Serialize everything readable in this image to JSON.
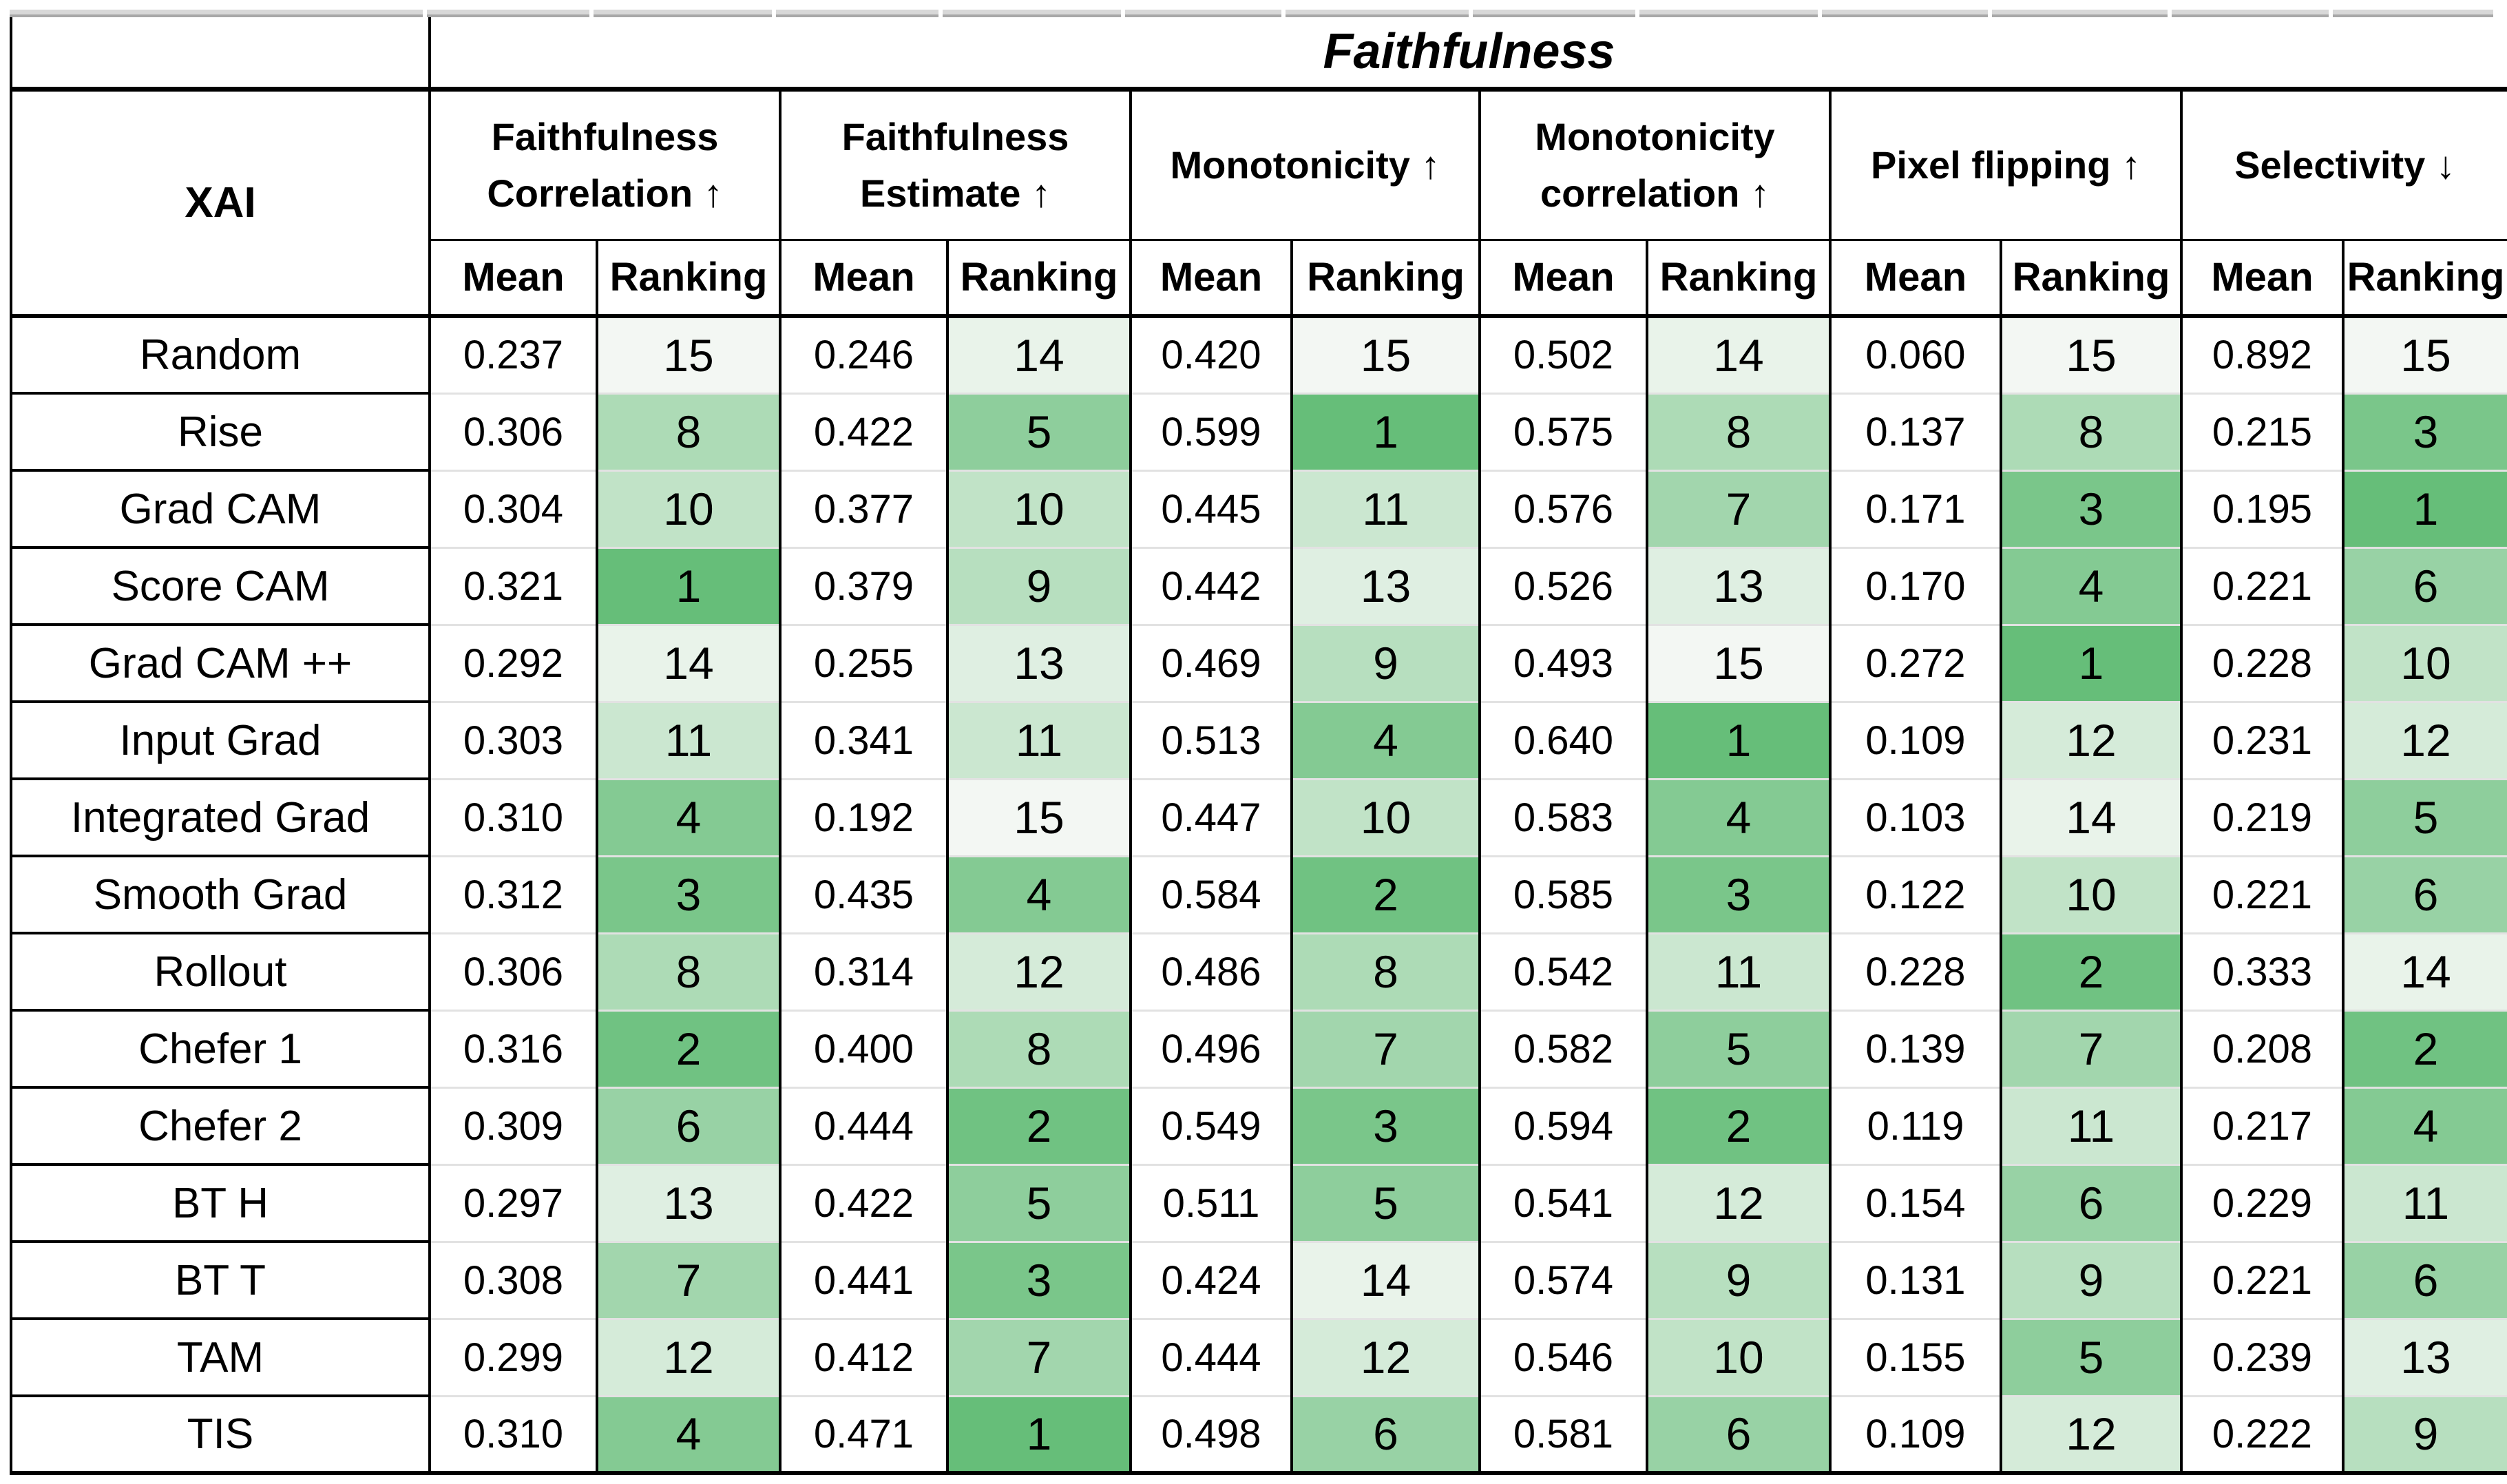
{
  "table": {
    "title": "Faithfulness",
    "xai_header": "XAI",
    "sub_headers": {
      "mean": "Mean",
      "ranking": "Ranking"
    },
    "metrics": [
      {
        "label": "Faithfulness Correlation",
        "arrow": "↑"
      },
      {
        "label": "Faithfulness Estimate",
        "arrow": "↑"
      },
      {
        "label": "Monotonicity",
        "arrow": "↑"
      },
      {
        "label": "Monotonicity correlation",
        "arrow": "↑"
      },
      {
        "label": "Pixel flipping",
        "arrow": "↑"
      },
      {
        "label": "Selectivity",
        "arrow": "↓"
      }
    ],
    "colors": {
      "rank_best": "#66BE79",
      "rank_worst": "#F3F7F3",
      "grid_black": "#000000",
      "row_separator": "#e2e2e2"
    },
    "rows": [
      {
        "method": "Random",
        "cells": [
          {
            "mean": "0.237",
            "rank": 15
          },
          {
            "mean": "0.246",
            "rank": 14
          },
          {
            "mean": "0.420",
            "rank": 15
          },
          {
            "mean": "0.502",
            "rank": 14
          },
          {
            "mean": "0.060",
            "rank": 15
          },
          {
            "mean": "0.892",
            "rank": 15
          }
        ]
      },
      {
        "method": "Rise",
        "cells": [
          {
            "mean": "0.306",
            "rank": 8
          },
          {
            "mean": "0.422",
            "rank": 5
          },
          {
            "mean": "0.599",
            "rank": 1
          },
          {
            "mean": "0.575",
            "rank": 8
          },
          {
            "mean": "0.137",
            "rank": 8
          },
          {
            "mean": "0.215",
            "rank": 3
          }
        ]
      },
      {
        "method": "Grad CAM",
        "cells": [
          {
            "mean": "0.304",
            "rank": 10
          },
          {
            "mean": "0.377",
            "rank": 10
          },
          {
            "mean": "0.445",
            "rank": 11
          },
          {
            "mean": "0.576",
            "rank": 7
          },
          {
            "mean": "0.171",
            "rank": 3
          },
          {
            "mean": "0.195",
            "rank": 1
          }
        ]
      },
      {
        "method": "Score CAM",
        "cells": [
          {
            "mean": "0.321",
            "rank": 1
          },
          {
            "mean": "0.379",
            "rank": 9
          },
          {
            "mean": "0.442",
            "rank": 13
          },
          {
            "mean": "0.526",
            "rank": 13
          },
          {
            "mean": "0.170",
            "rank": 4
          },
          {
            "mean": "0.221",
            "rank": 6
          }
        ]
      },
      {
        "method": "Grad CAM ++",
        "cells": [
          {
            "mean": "0.292",
            "rank": 14
          },
          {
            "mean": "0.255",
            "rank": 13
          },
          {
            "mean": "0.469",
            "rank": 9
          },
          {
            "mean": "0.493",
            "rank": 15
          },
          {
            "mean": "0.272",
            "rank": 1
          },
          {
            "mean": "0.228",
            "rank": 10
          }
        ]
      },
      {
        "method": "Input Grad",
        "cells": [
          {
            "mean": "0.303",
            "rank": 11
          },
          {
            "mean": "0.341",
            "rank": 11
          },
          {
            "mean": "0.513",
            "rank": 4
          },
          {
            "mean": "0.640",
            "rank": 1
          },
          {
            "mean": "0.109",
            "rank": 12
          },
          {
            "mean": "0.231",
            "rank": 12
          }
        ]
      },
      {
        "method": "Integrated Grad",
        "cells": [
          {
            "mean": "0.310",
            "rank": 4
          },
          {
            "mean": "0.192",
            "rank": 15
          },
          {
            "mean": "0.447",
            "rank": 10
          },
          {
            "mean": "0.583",
            "rank": 4
          },
          {
            "mean": "0.103",
            "rank": 14
          },
          {
            "mean": "0.219",
            "rank": 5
          }
        ]
      },
      {
        "method": "Smooth Grad",
        "cells": [
          {
            "mean": "0.312",
            "rank": 3
          },
          {
            "mean": "0.435",
            "rank": 4
          },
          {
            "mean": "0.584",
            "rank": 2
          },
          {
            "mean": "0.585",
            "rank": 3
          },
          {
            "mean": "0.122",
            "rank": 10
          },
          {
            "mean": "0.221",
            "rank": 6
          }
        ]
      },
      {
        "method": "Rollout",
        "cells": [
          {
            "mean": "0.306",
            "rank": 8
          },
          {
            "mean": "0.314",
            "rank": 12
          },
          {
            "mean": "0.486",
            "rank": 8
          },
          {
            "mean": "0.542",
            "rank": 11
          },
          {
            "mean": "0.228",
            "rank": 2
          },
          {
            "mean": "0.333",
            "rank": 14
          }
        ]
      },
      {
        "method": "Chefer 1",
        "cells": [
          {
            "mean": "0.316",
            "rank": 2
          },
          {
            "mean": "0.400",
            "rank": 8
          },
          {
            "mean": "0.496",
            "rank": 7
          },
          {
            "mean": "0.582",
            "rank": 5
          },
          {
            "mean": "0.139",
            "rank": 7
          },
          {
            "mean": "0.208",
            "rank": 2
          }
        ]
      },
      {
        "method": "Chefer 2",
        "cells": [
          {
            "mean": "0.309",
            "rank": 6
          },
          {
            "mean": "0.444",
            "rank": 2
          },
          {
            "mean": "0.549",
            "rank": 3
          },
          {
            "mean": "0.594",
            "rank": 2
          },
          {
            "mean": "0.119",
            "rank": 11
          },
          {
            "mean": "0.217",
            "rank": 4
          }
        ]
      },
      {
        "method": "BT H",
        "cells": [
          {
            "mean": "0.297",
            "rank": 13
          },
          {
            "mean": "0.422",
            "rank": 5
          },
          {
            "mean": "0.511",
            "rank": 5
          },
          {
            "mean": "0.541",
            "rank": 12
          },
          {
            "mean": "0.154",
            "rank": 6
          },
          {
            "mean": "0.229",
            "rank": 11
          }
        ]
      },
      {
        "method": "BT T",
        "cells": [
          {
            "mean": "0.308",
            "rank": 7
          },
          {
            "mean": "0.441",
            "rank": 3
          },
          {
            "mean": "0.424",
            "rank": 14
          },
          {
            "mean": "0.574",
            "rank": 9
          },
          {
            "mean": "0.131",
            "rank": 9
          },
          {
            "mean": "0.221",
            "rank": 6
          }
        ]
      },
      {
        "method": "TAM",
        "cells": [
          {
            "mean": "0.299",
            "rank": 12
          },
          {
            "mean": "0.412",
            "rank": 7
          },
          {
            "mean": "0.444",
            "rank": 12
          },
          {
            "mean": "0.546",
            "rank": 10
          },
          {
            "mean": "0.155",
            "rank": 5
          },
          {
            "mean": "0.239",
            "rank": 13
          }
        ]
      },
      {
        "method": "TIS",
        "cells": [
          {
            "mean": "0.310",
            "rank": 4
          },
          {
            "mean": "0.471",
            "rank": 1
          },
          {
            "mean": "0.498",
            "rank": 6
          },
          {
            "mean": "0.581",
            "rank": 6
          },
          {
            "mean": "0.109",
            "rank": 12
          },
          {
            "mean": "0.222",
            "rank": 9
          }
        ]
      }
    ]
  }
}
